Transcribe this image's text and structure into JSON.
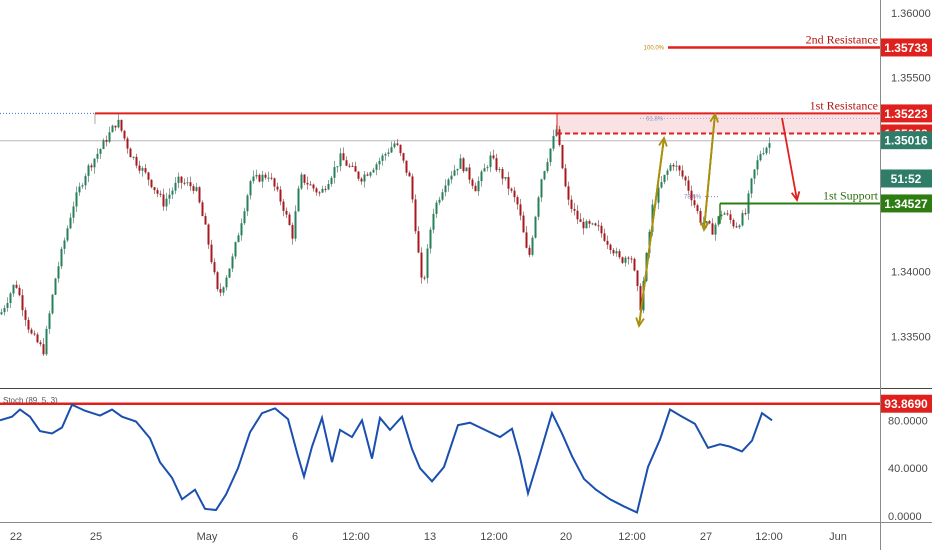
{
  "chart_data": [
    {
      "type": "candlestick",
      "x_ticks": [
        "22",
        "25",
        "May",
        "6",
        "12:00",
        "13",
        "12:00",
        "20",
        "12:00",
        "27",
        "12:00",
        "Jun"
      ],
      "y_ticks": [
        "1.36000",
        "1.35500",
        "1.35000",
        "1.34500",
        "1.34000",
        "1.33500"
      ],
      "ylim": [
        1.331,
        1.361
      ],
      "price_labels": [
        {
          "label": "2nd Resistance",
          "price": 1.35733,
          "text": "1.35733",
          "color": "#e0201c"
        },
        {
          "label": "1st Resistance",
          "price": 1.35223,
          "text": "1.35223",
          "color": "#e0201c"
        },
        {
          "label": "",
          "price": 1.35068,
          "text": "1.35068",
          "color": "#e0201c"
        },
        {
          "label": "",
          "price": 1.35016,
          "text": "1.35016",
          "color": "#2f7d68"
        },
        {
          "label": "",
          "price": 1.3472,
          "text": "51:52",
          "color": "#2f7d68"
        },
        {
          "label": "1st Support",
          "price": 1.34527,
          "text": "1.34527",
          "color": "#2e7d12"
        }
      ],
      "fib_labels": {
        "f100": "100.0%",
        "f618": "61.8%",
        "f786": "78.6%"
      },
      "path": [
        [
          0,
          1.3367
        ],
        [
          15,
          1.3392
        ],
        [
          30,
          1.3352
        ],
        [
          43,
          1.3339
        ],
        [
          55,
          1.3395
        ],
        [
          72,
          1.345
        ],
        [
          86,
          1.3478
        ],
        [
          100,
          1.3495
        ],
        [
          117,
          1.3517
        ],
        [
          130,
          1.3491
        ],
        [
          148,
          1.3472
        ],
        [
          163,
          1.3453
        ],
        [
          178,
          1.347
        ],
        [
          195,
          1.3465
        ],
        [
          206,
          1.343
        ],
        [
          218,
          1.338
        ],
        [
          232,
          1.341
        ],
        [
          250,
          1.347
        ],
        [
          268,
          1.3475
        ],
        [
          282,
          1.3452
        ],
        [
          292,
          1.3428
        ],
        [
          300,
          1.3473
        ],
        [
          320,
          1.346
        ],
        [
          340,
          1.3488
        ],
        [
          360,
          1.3472
        ],
        [
          378,
          1.3485
        ],
        [
          395,
          1.35
        ],
        [
          410,
          1.347
        ],
        [
          422,
          1.3385
        ],
        [
          432,
          1.3445
        ],
        [
          445,
          1.347
        ],
        [
          460,
          1.3485
        ],
        [
          475,
          1.3465
        ],
        [
          490,
          1.3488
        ],
        [
          505,
          1.347
        ],
        [
          518,
          1.345
        ],
        [
          528,
          1.3408
        ],
        [
          540,
          1.347
        ],
        [
          556,
          1.351
        ],
        [
          567,
          1.3455
        ],
        [
          580,
          1.3437
        ],
        [
          598,
          1.3433
        ],
        [
          612,
          1.3418
        ],
        [
          620,
          1.3408
        ],
        [
          630,
          1.3415
        ],
        [
          640,
          1.3373
        ],
        [
          652,
          1.345
        ],
        [
          662,
          1.347
        ],
        [
          672,
          1.3485
        ],
        [
          685,
          1.347
        ],
        [
          700,
          1.344
        ],
        [
          712,
          1.3432
        ],
        [
          722,
          1.3447
        ],
        [
          735,
          1.3435
        ],
        [
          745,
          1.3445
        ],
        [
          752,
          1.3473
        ],
        [
          760,
          1.3492
        ],
        [
          770,
          1.35
        ]
      ]
    },
    {
      "type": "line",
      "indicator_label": "Stoch (89, 5, 3)",
      "y_ticks": [
        "93.8690",
        "80.0000",
        "40.0000",
        "0.0000"
      ],
      "ylim": [
        -5,
        102
      ],
      "level": 93.869,
      "level_color": "#e0201c",
      "line_color": "#1a4fb0",
      "path": [
        [
          0,
          80
        ],
        [
          12,
          83
        ],
        [
          20,
          89
        ],
        [
          30,
          83
        ],
        [
          40,
          71
        ],
        [
          52,
          69
        ],
        [
          62,
          74
        ],
        [
          72,
          93
        ],
        [
          85,
          88
        ],
        [
          100,
          84
        ],
        [
          112,
          89
        ],
        [
          122,
          83
        ],
        [
          136,
          79
        ],
        [
          150,
          65
        ],
        [
          160,
          45
        ],
        [
          172,
          32
        ],
        [
          182,
          14
        ],
        [
          195,
          22
        ],
        [
          205,
          6
        ],
        [
          216,
          5
        ],
        [
          226,
          18
        ],
        [
          238,
          40
        ],
        [
          250,
          70
        ],
        [
          262,
          86
        ],
        [
          275,
          90
        ],
        [
          288,
          81
        ],
        [
          298,
          50
        ],
        [
          304,
          33
        ],
        [
          312,
          58
        ],
        [
          322,
          82
        ],
        [
          332,
          45
        ],
        [
          340,
          72
        ],
        [
          352,
          66
        ],
        [
          362,
          80
        ],
        [
          372,
          48
        ],
        [
          380,
          82
        ],
        [
          390,
          72
        ],
        [
          402,
          83
        ],
        [
          412,
          56
        ],
        [
          420,
          40
        ],
        [
          432,
          29
        ],
        [
          444,
          41
        ],
        [
          458,
          76
        ],
        [
          470,
          78
        ],
        [
          485,
          72
        ],
        [
          500,
          66
        ],
        [
          512,
          73
        ],
        [
          520,
          49
        ],
        [
          528,
          19
        ],
        [
          540,
          52
        ],
        [
          552,
          86
        ],
        [
          562,
          69
        ],
        [
          572,
          50
        ],
        [
          584,
          31
        ],
        [
          596,
          22
        ],
        [
          610,
          14
        ],
        [
          624,
          8
        ],
        [
          637,
          3
        ],
        [
          648,
          41
        ],
        [
          660,
          64
        ],
        [
          670,
          89
        ],
        [
          680,
          84
        ],
        [
          695,
          77
        ],
        [
          708,
          57
        ],
        [
          720,
          60
        ],
        [
          730,
          58
        ],
        [
          742,
          54
        ],
        [
          752,
          63
        ],
        [
          762,
          86
        ],
        [
          772,
          80
        ]
      ]
    }
  ]
}
